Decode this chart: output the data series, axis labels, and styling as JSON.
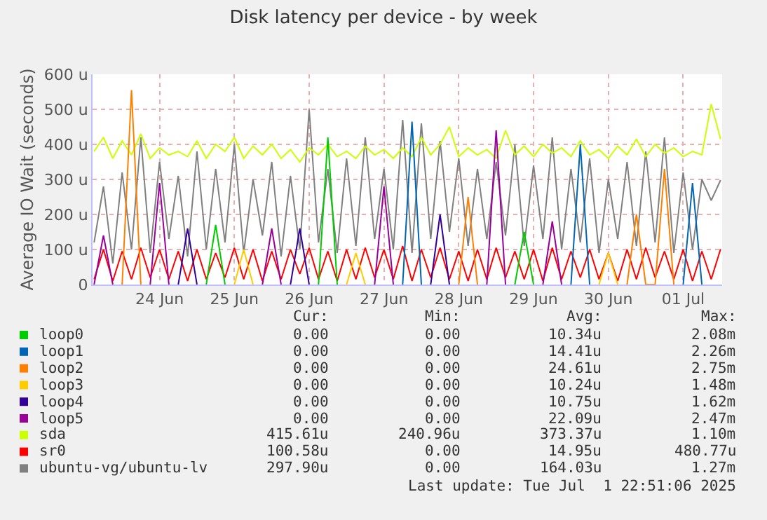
{
  "chart_data": {
    "type": "line",
    "title": "Disk latency per device - by week",
    "ylabel": "Average IO Wait (seconds)",
    "x": [
      "2025-06-23T03:00",
      "2025-06-23T06:00",
      "2025-06-23T09:00",
      "2025-06-23T12:00",
      "2025-06-23T15:00",
      "2025-06-23T18:00",
      "2025-06-23T21:00",
      "2025-06-24T00:00",
      "2025-06-24T03:00",
      "2025-06-24T06:00",
      "2025-06-24T09:00",
      "2025-06-24T12:00",
      "2025-06-24T15:00",
      "2025-06-24T18:00",
      "2025-06-24T21:00",
      "2025-06-25T00:00",
      "2025-06-25T03:00",
      "2025-06-25T06:00",
      "2025-06-25T09:00",
      "2025-06-25T12:00",
      "2025-06-25T15:00",
      "2025-06-25T18:00",
      "2025-06-25T21:00",
      "2025-06-26T00:00",
      "2025-06-26T03:00",
      "2025-06-26T06:00",
      "2025-06-26T09:00",
      "2025-06-26T12:00",
      "2025-06-26T15:00",
      "2025-06-26T18:00",
      "2025-06-26T21:00",
      "2025-06-27T00:00",
      "2025-06-27T03:00",
      "2025-06-27T06:00",
      "2025-06-27T09:00",
      "2025-06-27T12:00",
      "2025-06-27T15:00",
      "2025-06-27T18:00",
      "2025-06-27T21:00",
      "2025-06-28T00:00",
      "2025-06-28T03:00",
      "2025-06-28T06:00",
      "2025-06-28T09:00",
      "2025-06-28T12:00",
      "2025-06-28T15:00",
      "2025-06-28T18:00",
      "2025-06-28T21:00",
      "2025-06-29T00:00",
      "2025-06-29T03:00",
      "2025-06-29T06:00",
      "2025-06-29T09:00",
      "2025-06-29T12:00",
      "2025-06-29T15:00",
      "2025-06-29T18:00",
      "2025-06-29T21:00",
      "2025-06-30T00:00",
      "2025-06-30T03:00",
      "2025-06-30T06:00",
      "2025-06-30T09:00",
      "2025-06-30T12:00",
      "2025-06-30T15:00",
      "2025-06-30T18:00",
      "2025-06-30T21:00",
      "2025-07-01T00:00",
      "2025-07-01T03:00",
      "2025-07-01T06:00",
      "2025-07-01T09:00",
      "2025-07-01T12:00"
    ],
    "xlim": [
      "2025-06-23T02:30",
      "2025-07-01T12:30"
    ],
    "xticks": [
      {
        "value": "2025-06-24",
        "label": "24 Jun"
      },
      {
        "value": "2025-06-25",
        "label": "25 Jun"
      },
      {
        "value": "2025-06-26",
        "label": "26 Jun"
      },
      {
        "value": "2025-06-27",
        "label": "27 Jun"
      },
      {
        "value": "2025-06-28",
        "label": "28 Jun"
      },
      {
        "value": "2025-06-29",
        "label": "29 Jun"
      },
      {
        "value": "2025-06-30",
        "label": "30 Jun"
      },
      {
        "value": "2025-07-01",
        "label": "01 Jul"
      }
    ],
    "ylim": [
      0,
      600
    ],
    "yticks": [
      0,
      {
        "value": 100,
        "label": "100 u"
      },
      {
        "value": 200,
        "label": "200 u"
      },
      {
        "value": 300,
        "label": "300 u"
      },
      {
        "value": 400,
        "label": "400 u"
      },
      {
        "value": 500,
        "label": "500 u"
      },
      {
        "value": 600,
        "label": "600 u"
      }
    ],
    "grid": true,
    "legend": "bottom",
    "marker": "none",
    "line_style": "solid",
    "series": [
      {
        "name": "loop0",
        "color": "#00cc00",
        "values": [
          null,
          null,
          null,
          null,
          null,
          null,
          null,
          null,
          null,
          null,
          null,
          null,
          0,
          170,
          0,
          null,
          null,
          null,
          null,
          null,
          null,
          null,
          null,
          null,
          0,
          420,
          0,
          null,
          null,
          null,
          null,
          null,
          null,
          null,
          null,
          null,
          null,
          null,
          null,
          null,
          null,
          null,
          null,
          null,
          null,
          0,
          150,
          0,
          null,
          null,
          null,
          null,
          null,
          null,
          null,
          null,
          null,
          null,
          null,
          null,
          null,
          null,
          null,
          null,
          null,
          null,
          null,
          null
        ]
      },
      {
        "name": "loop1",
        "color": "#0066b3",
        "values": [
          null,
          null,
          null,
          null,
          null,
          null,
          null,
          null,
          null,
          null,
          null,
          null,
          null,
          null,
          null,
          null,
          null,
          null,
          null,
          null,
          null,
          null,
          null,
          null,
          null,
          null,
          null,
          null,
          null,
          null,
          null,
          null,
          null,
          0,
          465,
          0,
          null,
          null,
          null,
          null,
          null,
          null,
          null,
          null,
          null,
          null,
          null,
          null,
          null,
          null,
          null,
          0,
          400,
          0,
          null,
          null,
          null,
          null,
          null,
          null,
          null,
          null,
          null,
          0,
          290,
          0,
          null,
          null
        ]
      },
      {
        "name": "loop2",
        "color": "#ff8000",
        "values": [
          null,
          null,
          null,
          0,
          555,
          0,
          null,
          null,
          null,
          null,
          null,
          null,
          null,
          null,
          null,
          null,
          null,
          null,
          null,
          null,
          null,
          null,
          null,
          null,
          null,
          null,
          null,
          null,
          null,
          null,
          null,
          null,
          null,
          null,
          null,
          null,
          null,
          null,
          null,
          0,
          250,
          0,
          null,
          null,
          null,
          null,
          null,
          null,
          null,
          null,
          null,
          null,
          null,
          null,
          null,
          null,
          null,
          0,
          200,
          0,
          0,
          330,
          0,
          null,
          null,
          null,
          null,
          null
        ]
      },
      {
        "name": "loop3",
        "color": "#ffcc00",
        "values": [
          null,
          null,
          null,
          null,
          null,
          null,
          null,
          null,
          null,
          null,
          null,
          null,
          null,
          null,
          null,
          0,
          100,
          0,
          null,
          null,
          null,
          null,
          null,
          null,
          null,
          null,
          null,
          0,
          90,
          0,
          null,
          null,
          null,
          null,
          null,
          null,
          null,
          null,
          null,
          null,
          null,
          null,
          null,
          null,
          null,
          null,
          null,
          null,
          null,
          null,
          null,
          null,
          null,
          null,
          0,
          90,
          0,
          null,
          null,
          null,
          null,
          null,
          null,
          null,
          null,
          null,
          null,
          null
        ]
      },
      {
        "name": "loop4",
        "color": "#330099",
        "values": [
          null,
          null,
          null,
          null,
          null,
          null,
          null,
          null,
          null,
          0,
          160,
          0,
          null,
          null,
          null,
          null,
          null,
          null,
          null,
          null,
          null,
          0,
          160,
          0,
          null,
          null,
          null,
          null,
          null,
          null,
          null,
          null,
          null,
          null,
          null,
          null,
          0,
          200,
          0,
          null,
          null,
          null,
          null,
          null,
          null,
          null,
          null,
          null,
          null,
          null,
          null,
          null,
          null,
          null,
          null,
          null,
          null,
          null,
          null,
          null,
          null,
          null,
          null,
          null,
          null,
          null,
          null,
          null
        ]
      },
      {
        "name": "loop5",
        "color": "#990099",
        "values": [
          0,
          140,
          0,
          null,
          null,
          null,
          0,
          290,
          0,
          null,
          null,
          null,
          null,
          null,
          null,
          null,
          null,
          null,
          0,
          160,
          0,
          null,
          null,
          null,
          null,
          null,
          null,
          null,
          null,
          null,
          0,
          280,
          0,
          null,
          null,
          null,
          null,
          null,
          null,
          null,
          null,
          null,
          0,
          440,
          0,
          null,
          null,
          null,
          0,
          180,
          0,
          null,
          null,
          null,
          null,
          null,
          null,
          null,
          null,
          null,
          null,
          null,
          null,
          null,
          null,
          null,
          null,
          null
        ]
      },
      {
        "name": "sda",
        "color": "#ccff00",
        "values": [
          380,
          420,
          360,
          410,
          370,
          430,
          360,
          390,
          370,
          380,
          365,
          410,
          360,
          400,
          380,
          420,
          360,
          395,
          370,
          400,
          360,
          385,
          350,
          390,
          370,
          400,
          365,
          380,
          360,
          395,
          370,
          385,
          360,
          390,
          365,
          420,
          370,
          400,
          450,
          365,
          390,
          370,
          385,
          360,
          440,
          370,
          395,
          365,
          400,
          375,
          390,
          365,
          410,
          370,
          385,
          360,
          395,
          370,
          415,
          365,
          400,
          375,
          390,
          365,
          380,
          370,
          515,
          415
        ]
      },
      {
        "name": "sr0",
        "color": "#ff0000",
        "values": [
          15,
          100,
          10,
          95,
          15,
          105,
          20,
          100,
          15,
          95,
          10,
          100,
          15,
          90,
          20,
          105,
          15,
          100,
          10,
          95,
          15,
          100,
          30,
          105,
          15,
          95,
          10,
          100,
          15,
          105,
          20,
          100,
          15,
          110,
          10,
          100,
          20,
          105,
          15,
          95,
          10,
          100,
          15,
          105,
          20,
          95,
          15,
          100,
          10,
          105,
          15,
          95,
          20,
          100,
          15,
          90,
          10,
          100,
          15,
          105,
          20,
          95,
          15,
          100,
          10,
          95,
          15,
          101
        ]
      },
      {
        "name": "ubuntu-vg/ubuntu-lv",
        "color": "#808080",
        "values": [
          120,
          280,
          60,
          320,
          100,
          420,
          90,
          350,
          130,
          310,
          80,
          380,
          100,
          330,
          120,
          400,
          90,
          300,
          140,
          350,
          80,
          310,
          100,
          500,
          120,
          330,
          90,
          360,
          110,
          420,
          130,
          330,
          100,
          470,
          90,
          460,
          130,
          410,
          150,
          360,
          110,
          330,
          130,
          350,
          140,
          400,
          110,
          340,
          130,
          420,
          100,
          330,
          120,
          360,
          90,
          300,
          130,
          350,
          110,
          380,
          120,
          420,
          90,
          320,
          100,
          300,
          240,
          298
        ]
      }
    ],
    "annotations": [
      "Cur:",
      "Min:",
      "Avg:",
      "Max:",
      "0.00",
      "0.00",
      "10.34u",
      "2.08m",
      "0.00",
      "0.00",
      "14.41u",
      "2.26m",
      "0.00",
      "0.00",
      "24.61u",
      "2.75m",
      "0.00",
      "0.00",
      "10.24u",
      "1.48m",
      "0.00",
      "0.00",
      "10.75u",
      "1.62m",
      "0.00",
      "0.00",
      "22.09u",
      "2.47m",
      "415.61u",
      "240.96u",
      "373.37u",
      "1.10m",
      "100.58u",
      "0.00",
      "14.95u",
      "480.77u",
      "297.90u",
      "0.00",
      "164.03u",
      "1.27m",
      "Last update: Tue Jul  1 22:51:06 2025"
    ]
  }
}
